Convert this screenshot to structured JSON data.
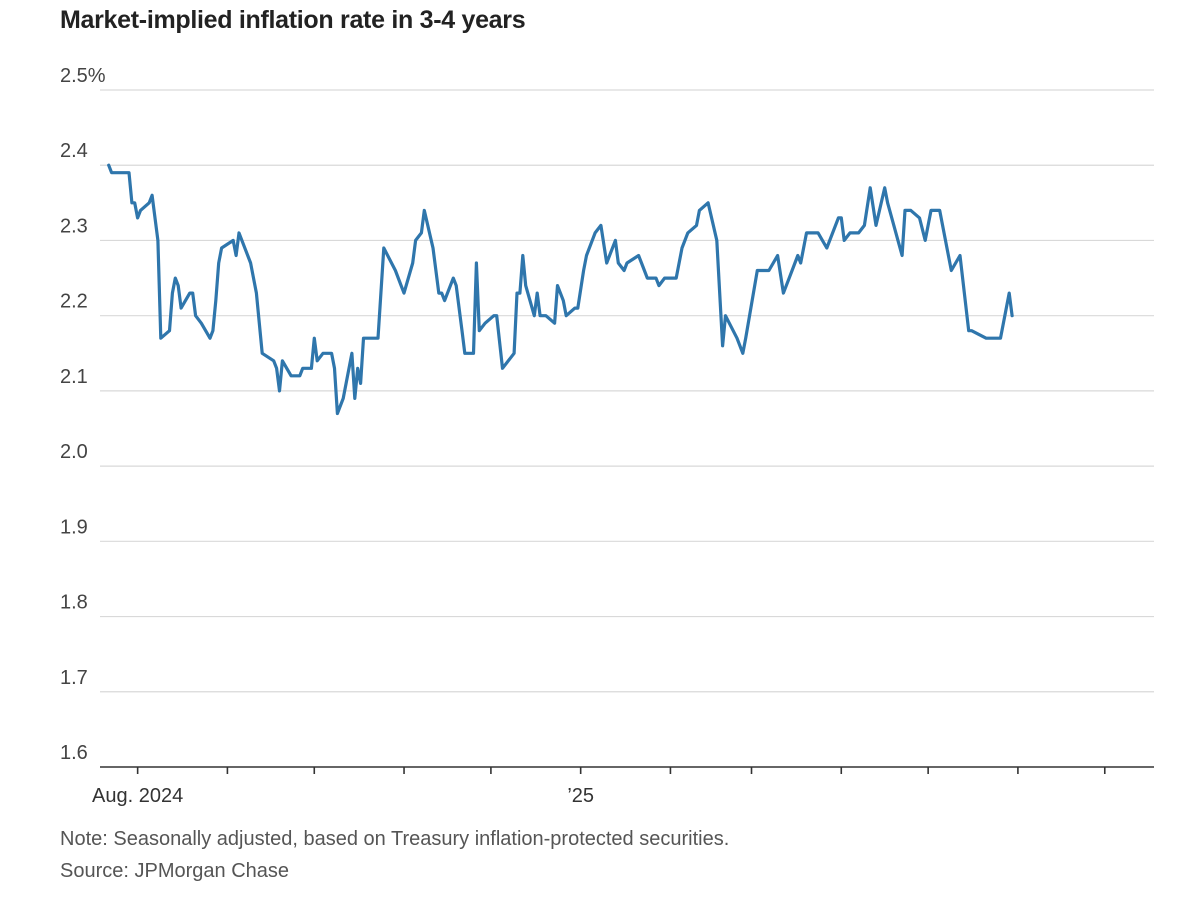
{
  "chart_data": {
    "type": "line",
    "title": "Market-implied inflation rate in 3-4 years",
    "unit": "%",
    "ylim": [
      1.6,
      2.5
    ],
    "y_ticks": [
      1.6,
      1.7,
      1.8,
      1.9,
      2.0,
      2.1,
      2.2,
      2.3,
      2.4,
      2.5
    ],
    "y_tick_labels": [
      "1.6",
      "1.7",
      "1.8",
      "1.9",
      "2.0",
      "2.1",
      "2.2",
      "2.3",
      "2.4",
      "2.5%"
    ],
    "x_start": "2024-07-19",
    "x_end": "2025-07-18",
    "x_month_ticks": [
      "2024-08-01",
      "2024-09-01",
      "2024-10-01",
      "2024-11-01",
      "2024-12-01",
      "2025-01-01",
      "2025-02-01",
      "2025-03-01",
      "2025-04-01",
      "2025-05-01",
      "2025-06-01",
      "2025-07-01"
    ],
    "x_labels": [
      {
        "date": "2024-08-01",
        "text": "Aug. 2024"
      },
      {
        "date": "2025-01-01",
        "text": "’25"
      }
    ],
    "grid": true,
    "series": [
      {
        "name": "Market-implied inflation rate in 3-4 years",
        "color": "#2f76ac",
        "points": [
          [
            "2024-07-22",
            2.4
          ],
          [
            "2024-07-23",
            2.39
          ],
          [
            "2024-07-26",
            2.39
          ],
          [
            "2024-07-29",
            2.39
          ],
          [
            "2024-07-30",
            2.35
          ],
          [
            "2024-07-31",
            2.35
          ],
          [
            "2024-08-01",
            2.33
          ],
          [
            "2024-08-02",
            2.34
          ],
          [
            "2024-08-05",
            2.35
          ],
          [
            "2024-08-06",
            2.36
          ],
          [
            "2024-08-07",
            2.33
          ],
          [
            "2024-08-08",
            2.3
          ],
          [
            "2024-08-09",
            2.17
          ],
          [
            "2024-08-12",
            2.18
          ],
          [
            "2024-08-13",
            2.23
          ],
          [
            "2024-08-14",
            2.25
          ],
          [
            "2024-08-15",
            2.24
          ],
          [
            "2024-08-16",
            2.21
          ],
          [
            "2024-08-19",
            2.23
          ],
          [
            "2024-08-20",
            2.23
          ],
          [
            "2024-08-21",
            2.2
          ],
          [
            "2024-08-23",
            2.19
          ],
          [
            "2024-08-26",
            2.17
          ],
          [
            "2024-08-27",
            2.18
          ],
          [
            "2024-08-28",
            2.22
          ],
          [
            "2024-08-29",
            2.27
          ],
          [
            "2024-08-30",
            2.29
          ],
          [
            "2024-09-03",
            2.3
          ],
          [
            "2024-09-04",
            2.28
          ],
          [
            "2024-09-05",
            2.31
          ],
          [
            "2024-09-06",
            2.3
          ],
          [
            "2024-09-09",
            2.27
          ],
          [
            "2024-09-11",
            2.23
          ],
          [
            "2024-09-12",
            2.19
          ],
          [
            "2024-09-13",
            2.15
          ],
          [
            "2024-09-17",
            2.14
          ],
          [
            "2024-09-18",
            2.13
          ],
          [
            "2024-09-19",
            2.1
          ],
          [
            "2024-09-20",
            2.14
          ],
          [
            "2024-09-23",
            2.12
          ],
          [
            "2024-09-26",
            2.12
          ],
          [
            "2024-09-27",
            2.13
          ],
          [
            "2024-09-30",
            2.13
          ],
          [
            "2024-10-01",
            2.17
          ],
          [
            "2024-10-02",
            2.14
          ],
          [
            "2024-10-04",
            2.15
          ],
          [
            "2024-10-07",
            2.15
          ],
          [
            "2024-10-08",
            2.13
          ],
          [
            "2024-10-09",
            2.07
          ],
          [
            "2024-10-11",
            2.09
          ],
          [
            "2024-10-14",
            2.15
          ],
          [
            "2024-10-15",
            2.09
          ],
          [
            "2024-10-16",
            2.13
          ],
          [
            "2024-10-17",
            2.11
          ],
          [
            "2024-10-18",
            2.17
          ],
          [
            "2024-10-21",
            2.17
          ],
          [
            "2024-10-23",
            2.17
          ],
          [
            "2024-10-25",
            2.29
          ],
          [
            "2024-10-29",
            2.26
          ],
          [
            "2024-10-31",
            2.24
          ],
          [
            "2024-11-01",
            2.23
          ],
          [
            "2024-11-04",
            2.27
          ],
          [
            "2024-11-05",
            2.3
          ],
          [
            "2024-11-07",
            2.31
          ],
          [
            "2024-11-08",
            2.34
          ],
          [
            "2024-11-11",
            2.29
          ],
          [
            "2024-11-13",
            2.23
          ],
          [
            "2024-11-14",
            2.23
          ],
          [
            "2024-11-15",
            2.22
          ],
          [
            "2024-11-18",
            2.25
          ],
          [
            "2024-11-19",
            2.24
          ],
          [
            "2024-11-21",
            2.18
          ],
          [
            "2024-11-22",
            2.15
          ],
          [
            "2024-11-25",
            2.15
          ],
          [
            "2024-11-26",
            2.27
          ],
          [
            "2024-11-27",
            2.18
          ],
          [
            "2024-11-29",
            2.19
          ],
          [
            "2024-12-02",
            2.2
          ],
          [
            "2024-12-03",
            2.2
          ],
          [
            "2024-12-05",
            2.13
          ],
          [
            "2024-12-09",
            2.15
          ],
          [
            "2024-12-10",
            2.23
          ],
          [
            "2024-12-11",
            2.23
          ],
          [
            "2024-12-12",
            2.28
          ],
          [
            "2024-12-13",
            2.24
          ],
          [
            "2024-12-16",
            2.2
          ],
          [
            "2024-12-17",
            2.23
          ],
          [
            "2024-12-18",
            2.2
          ],
          [
            "2024-12-19",
            2.2
          ],
          [
            "2024-12-20",
            2.2
          ],
          [
            "2024-12-23",
            2.19
          ],
          [
            "2024-12-24",
            2.24
          ],
          [
            "2024-12-26",
            2.22
          ],
          [
            "2024-12-27",
            2.2
          ],
          [
            "2024-12-30",
            2.21
          ],
          [
            "2024-12-31",
            2.21
          ],
          [
            "2025-01-02",
            2.26
          ],
          [
            "2025-01-03",
            2.28
          ],
          [
            "2025-01-06",
            2.31
          ],
          [
            "2025-01-08",
            2.32
          ],
          [
            "2025-01-10",
            2.27
          ],
          [
            "2025-01-13",
            2.3
          ],
          [
            "2025-01-14",
            2.27
          ],
          [
            "2025-01-16",
            2.26
          ],
          [
            "2025-01-17",
            2.27
          ],
          [
            "2025-01-21",
            2.28
          ],
          [
            "2025-01-23",
            2.26
          ],
          [
            "2025-01-24",
            2.25
          ],
          [
            "2025-01-27",
            2.25
          ],
          [
            "2025-01-28",
            2.24
          ],
          [
            "2025-01-30",
            2.25
          ],
          [
            "2025-02-03",
            2.25
          ],
          [
            "2025-02-05",
            2.29
          ],
          [
            "2025-02-07",
            2.31
          ],
          [
            "2025-02-10",
            2.32
          ],
          [
            "2025-02-11",
            2.34
          ],
          [
            "2025-02-14",
            2.35
          ],
          [
            "2025-02-17",
            2.3
          ],
          [
            "2025-02-19",
            2.16
          ],
          [
            "2025-02-20",
            2.2
          ],
          [
            "2025-02-24",
            2.17
          ],
          [
            "2025-02-26",
            2.15
          ],
          [
            "2025-02-27",
            2.17
          ],
          [
            "2025-03-03",
            2.26
          ],
          [
            "2025-03-06",
            2.26
          ],
          [
            "2025-03-07",
            2.26
          ],
          [
            "2025-03-10",
            2.28
          ],
          [
            "2025-03-12",
            2.23
          ],
          [
            "2025-03-14",
            2.25
          ],
          [
            "2025-03-17",
            2.28
          ],
          [
            "2025-03-18",
            2.27
          ],
          [
            "2025-03-20",
            2.31
          ],
          [
            "2025-03-24",
            2.31
          ],
          [
            "2025-03-27",
            2.29
          ],
          [
            "2025-03-31",
            2.33
          ],
          [
            "2025-04-01",
            2.33
          ],
          [
            "2025-04-02",
            2.3
          ],
          [
            "2025-04-04",
            2.31
          ],
          [
            "2025-04-07",
            2.31
          ],
          [
            "2025-04-09",
            2.32
          ],
          [
            "2025-04-11",
            2.37
          ],
          [
            "2025-04-13",
            2.32
          ],
          [
            "2025-04-16",
            2.37
          ],
          [
            "2025-04-17",
            2.35
          ],
          [
            "2025-04-22",
            2.28
          ],
          [
            "2025-04-23",
            2.34
          ],
          [
            "2025-04-25",
            2.34
          ],
          [
            "2025-04-28",
            2.33
          ],
          [
            "2025-04-30",
            2.3
          ],
          [
            "2025-05-02",
            2.34
          ],
          [
            "2025-05-05",
            2.34
          ],
          [
            "2025-05-09",
            2.26
          ],
          [
            "2025-05-12",
            2.28
          ],
          [
            "2025-05-15",
            2.18
          ],
          [
            "2025-05-16",
            2.18
          ],
          [
            "2025-05-21",
            2.17
          ],
          [
            "2025-05-23",
            2.17
          ],
          [
            "2025-05-26",
            2.17
          ],
          [
            "2025-05-29",
            2.23
          ],
          [
            "2025-05-30",
            2.2
          ]
        ]
      }
    ]
  },
  "notes": {
    "note": "Note: Seasonally adjusted, based on Treasury inflation-protected securities.",
    "source": "Source: JPMorgan Chase"
  }
}
